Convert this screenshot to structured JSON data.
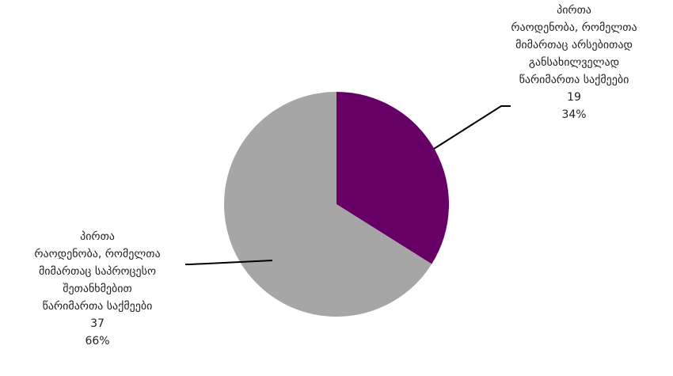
{
  "chart_data": {
    "type": "pie",
    "slices": [
      {
        "label_lines": [
          "პირთა",
          "რაოდენობა, რომელთა",
          "მიმართაც არსებითად",
          "განსახილველად",
          "წარიმართა საქმეები"
        ],
        "value": 19,
        "value_text": "19",
        "percent": "34%",
        "color": "#660066"
      },
      {
        "label_lines": [
          "პირთა",
          "რაოდენობა, რომელთა",
          "მიმართაც საპროცესო",
          "შეთანხმებით",
          "წარიმართა საქმეები"
        ],
        "value": 37,
        "value_text": "37",
        "percent": "66%",
        "color": "#a6a6a6"
      }
    ],
    "start_angle": "12 o'clock",
    "direction": "clockwise",
    "legend": "none"
  }
}
